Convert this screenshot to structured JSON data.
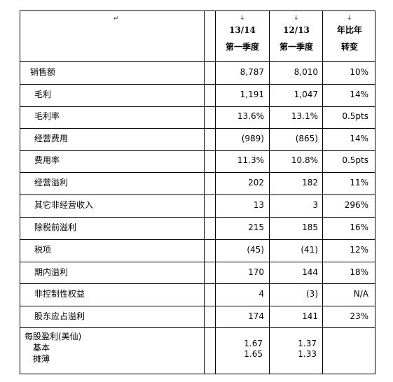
{
  "header": {
    "col1_line1": "13/14",
    "col1_line2": "第一季度",
    "col2_line1": "12/13",
    "col2_line2": "第一季度",
    "col3_line1": "年比年",
    "col3_line2": "转变"
  },
  "rows": [
    {
      "label": "销售额",
      "c1": "8,787",
      "c2": "8,010",
      "c3": "10%"
    },
    {
      "label": "毛利",
      "c1": "1,191",
      "c2": "1,047",
      "c3": "14%"
    },
    {
      "label": "毛利率",
      "c1": "13.6%",
      "c2": "13.1%",
      "c3": "0.5pts"
    },
    {
      "label": "经营费用",
      "c1": "(989)",
      "c2": "(865)",
      "c3": "14%"
    },
    {
      "label": "费用率",
      "c1": "11.3%",
      "c2": "10.8%",
      "c3": "0.5pts"
    },
    {
      "label": "经营溢利",
      "c1": "202",
      "c2": "182",
      "c3": "11%"
    },
    {
      "label": "其它非经营收入",
      "c1": "13",
      "c2": "3",
      "c3": "296%"
    },
    {
      "label": "除税前溢利",
      "c1": "215",
      "c2": "185",
      "c3": "16%"
    },
    {
      "label": "税项",
      "c1": "(45)",
      "c2": "(41)",
      "c3": "12%"
    },
    {
      "label": "期内溢利",
      "c1": "170",
      "c2": "144",
      "c3": "18%"
    },
    {
      "label": "非控制性权益",
      "c1": "4",
      "c2": "(3)",
      "c3": "N/A"
    },
    {
      "label": "股东应占溢利",
      "c1": "174",
      "c2": "141",
      "c3": "23%"
    }
  ],
  "eps": {
    "title": "每股盈利(美仙)",
    "basic_label": "基本",
    "diluted_label": "摊薄",
    "basic_c1": "1.67",
    "diluted_c1": "1.65",
    "basic_c2": "1.37",
    "diluted_c2": "1.33"
  }
}
